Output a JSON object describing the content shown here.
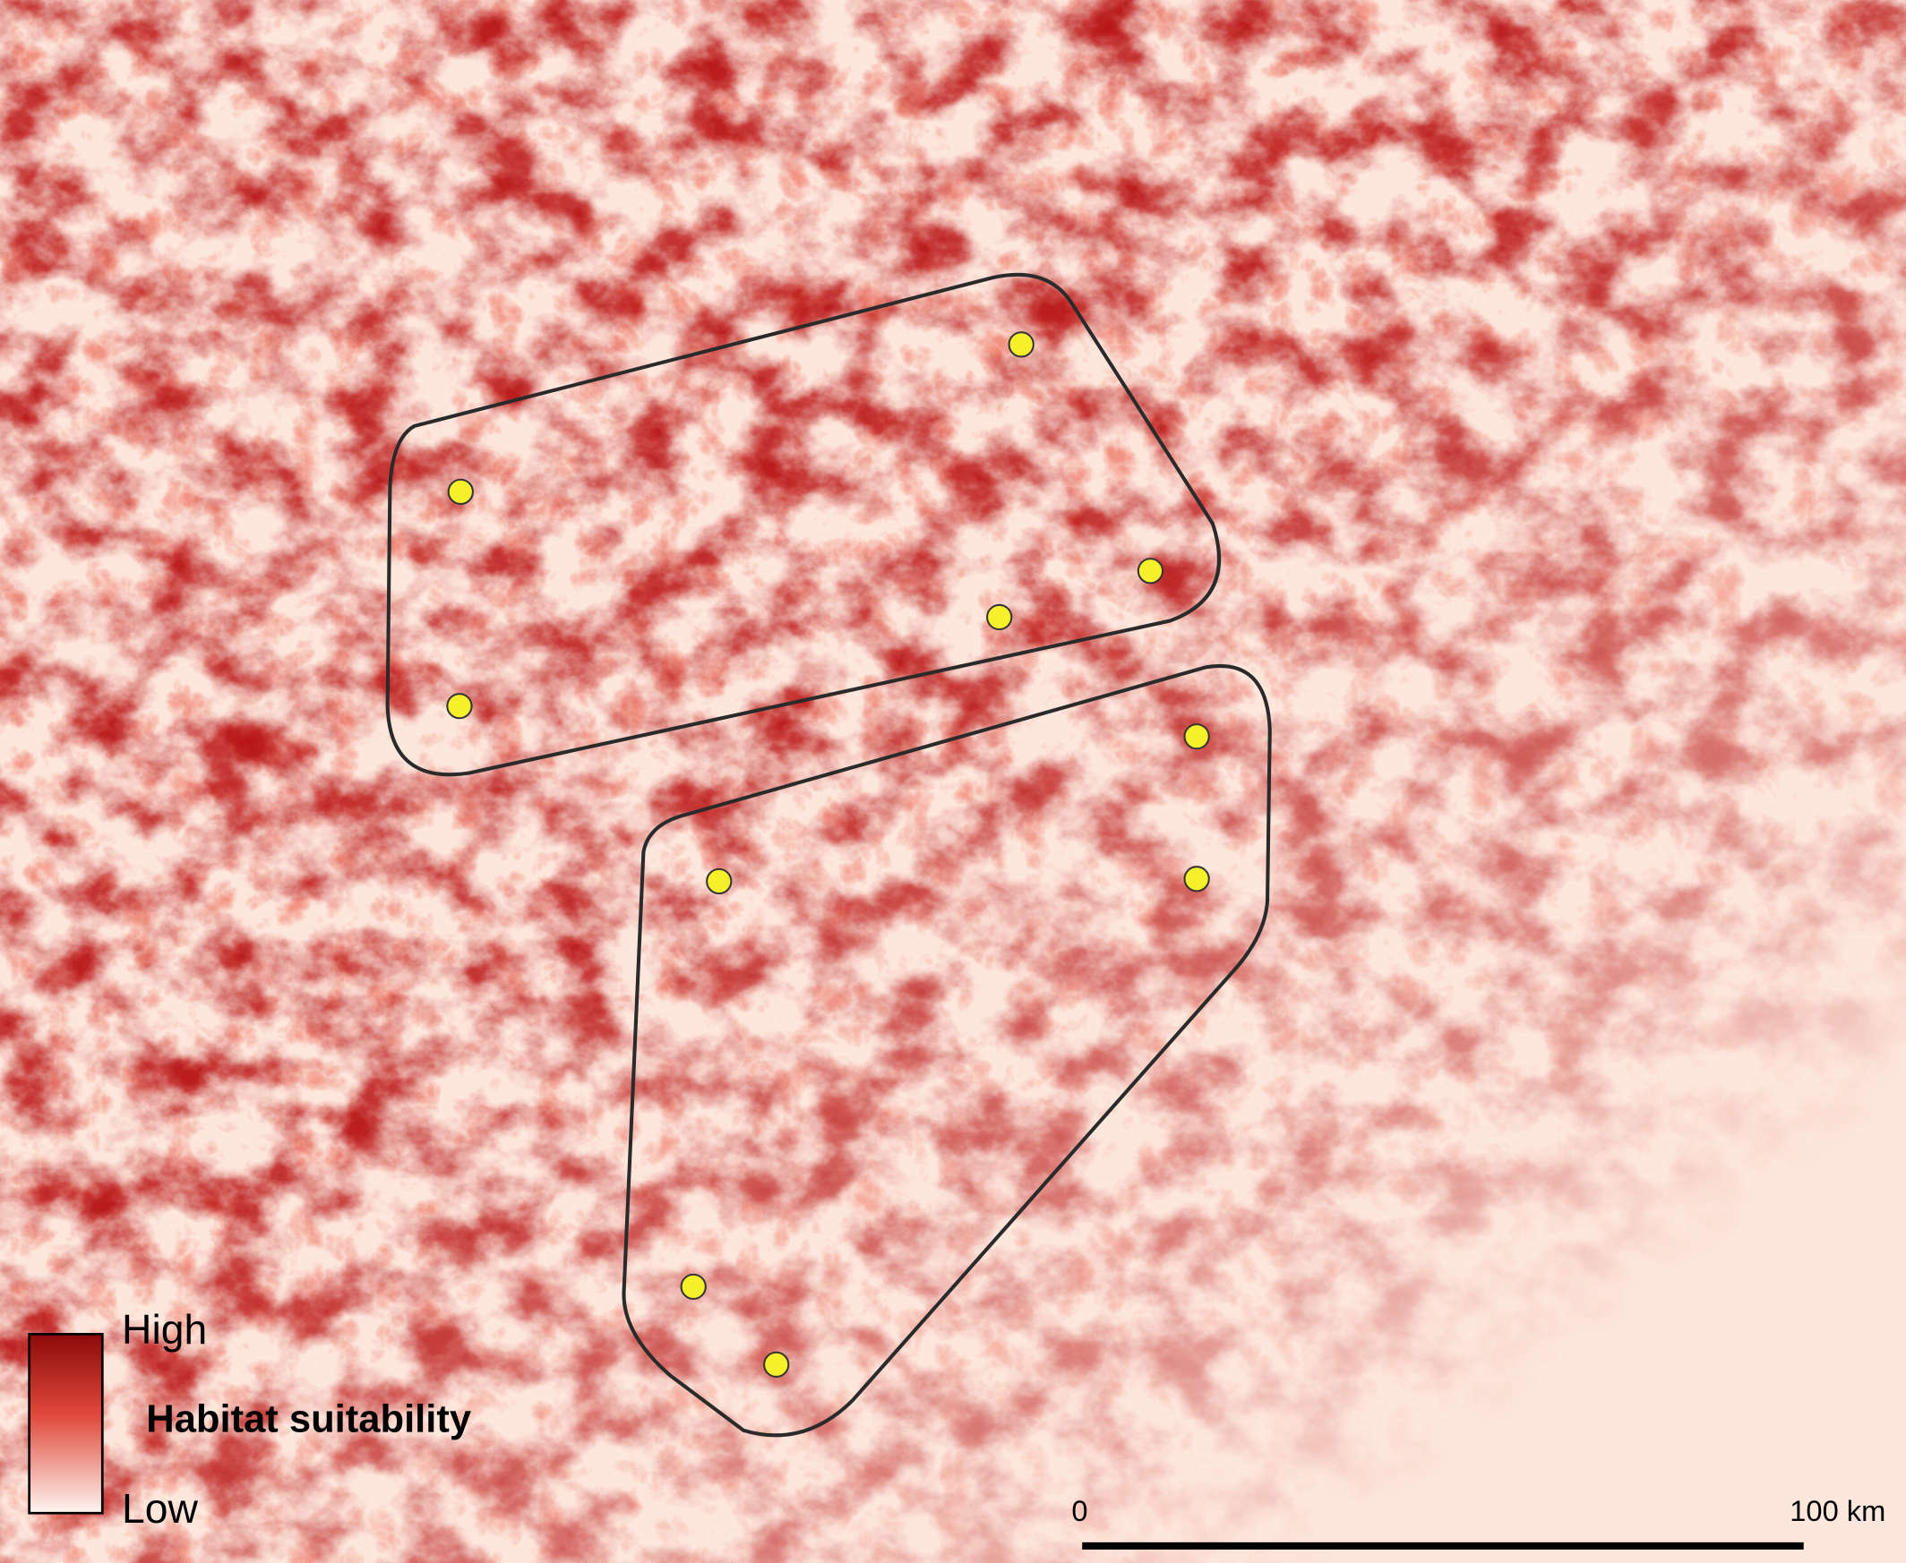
{
  "legend": {
    "high": "High",
    "title": "Habitat suitability",
    "low": "Low"
  },
  "scale_bar": {
    "start": "0",
    "end": "100 km"
  }
}
